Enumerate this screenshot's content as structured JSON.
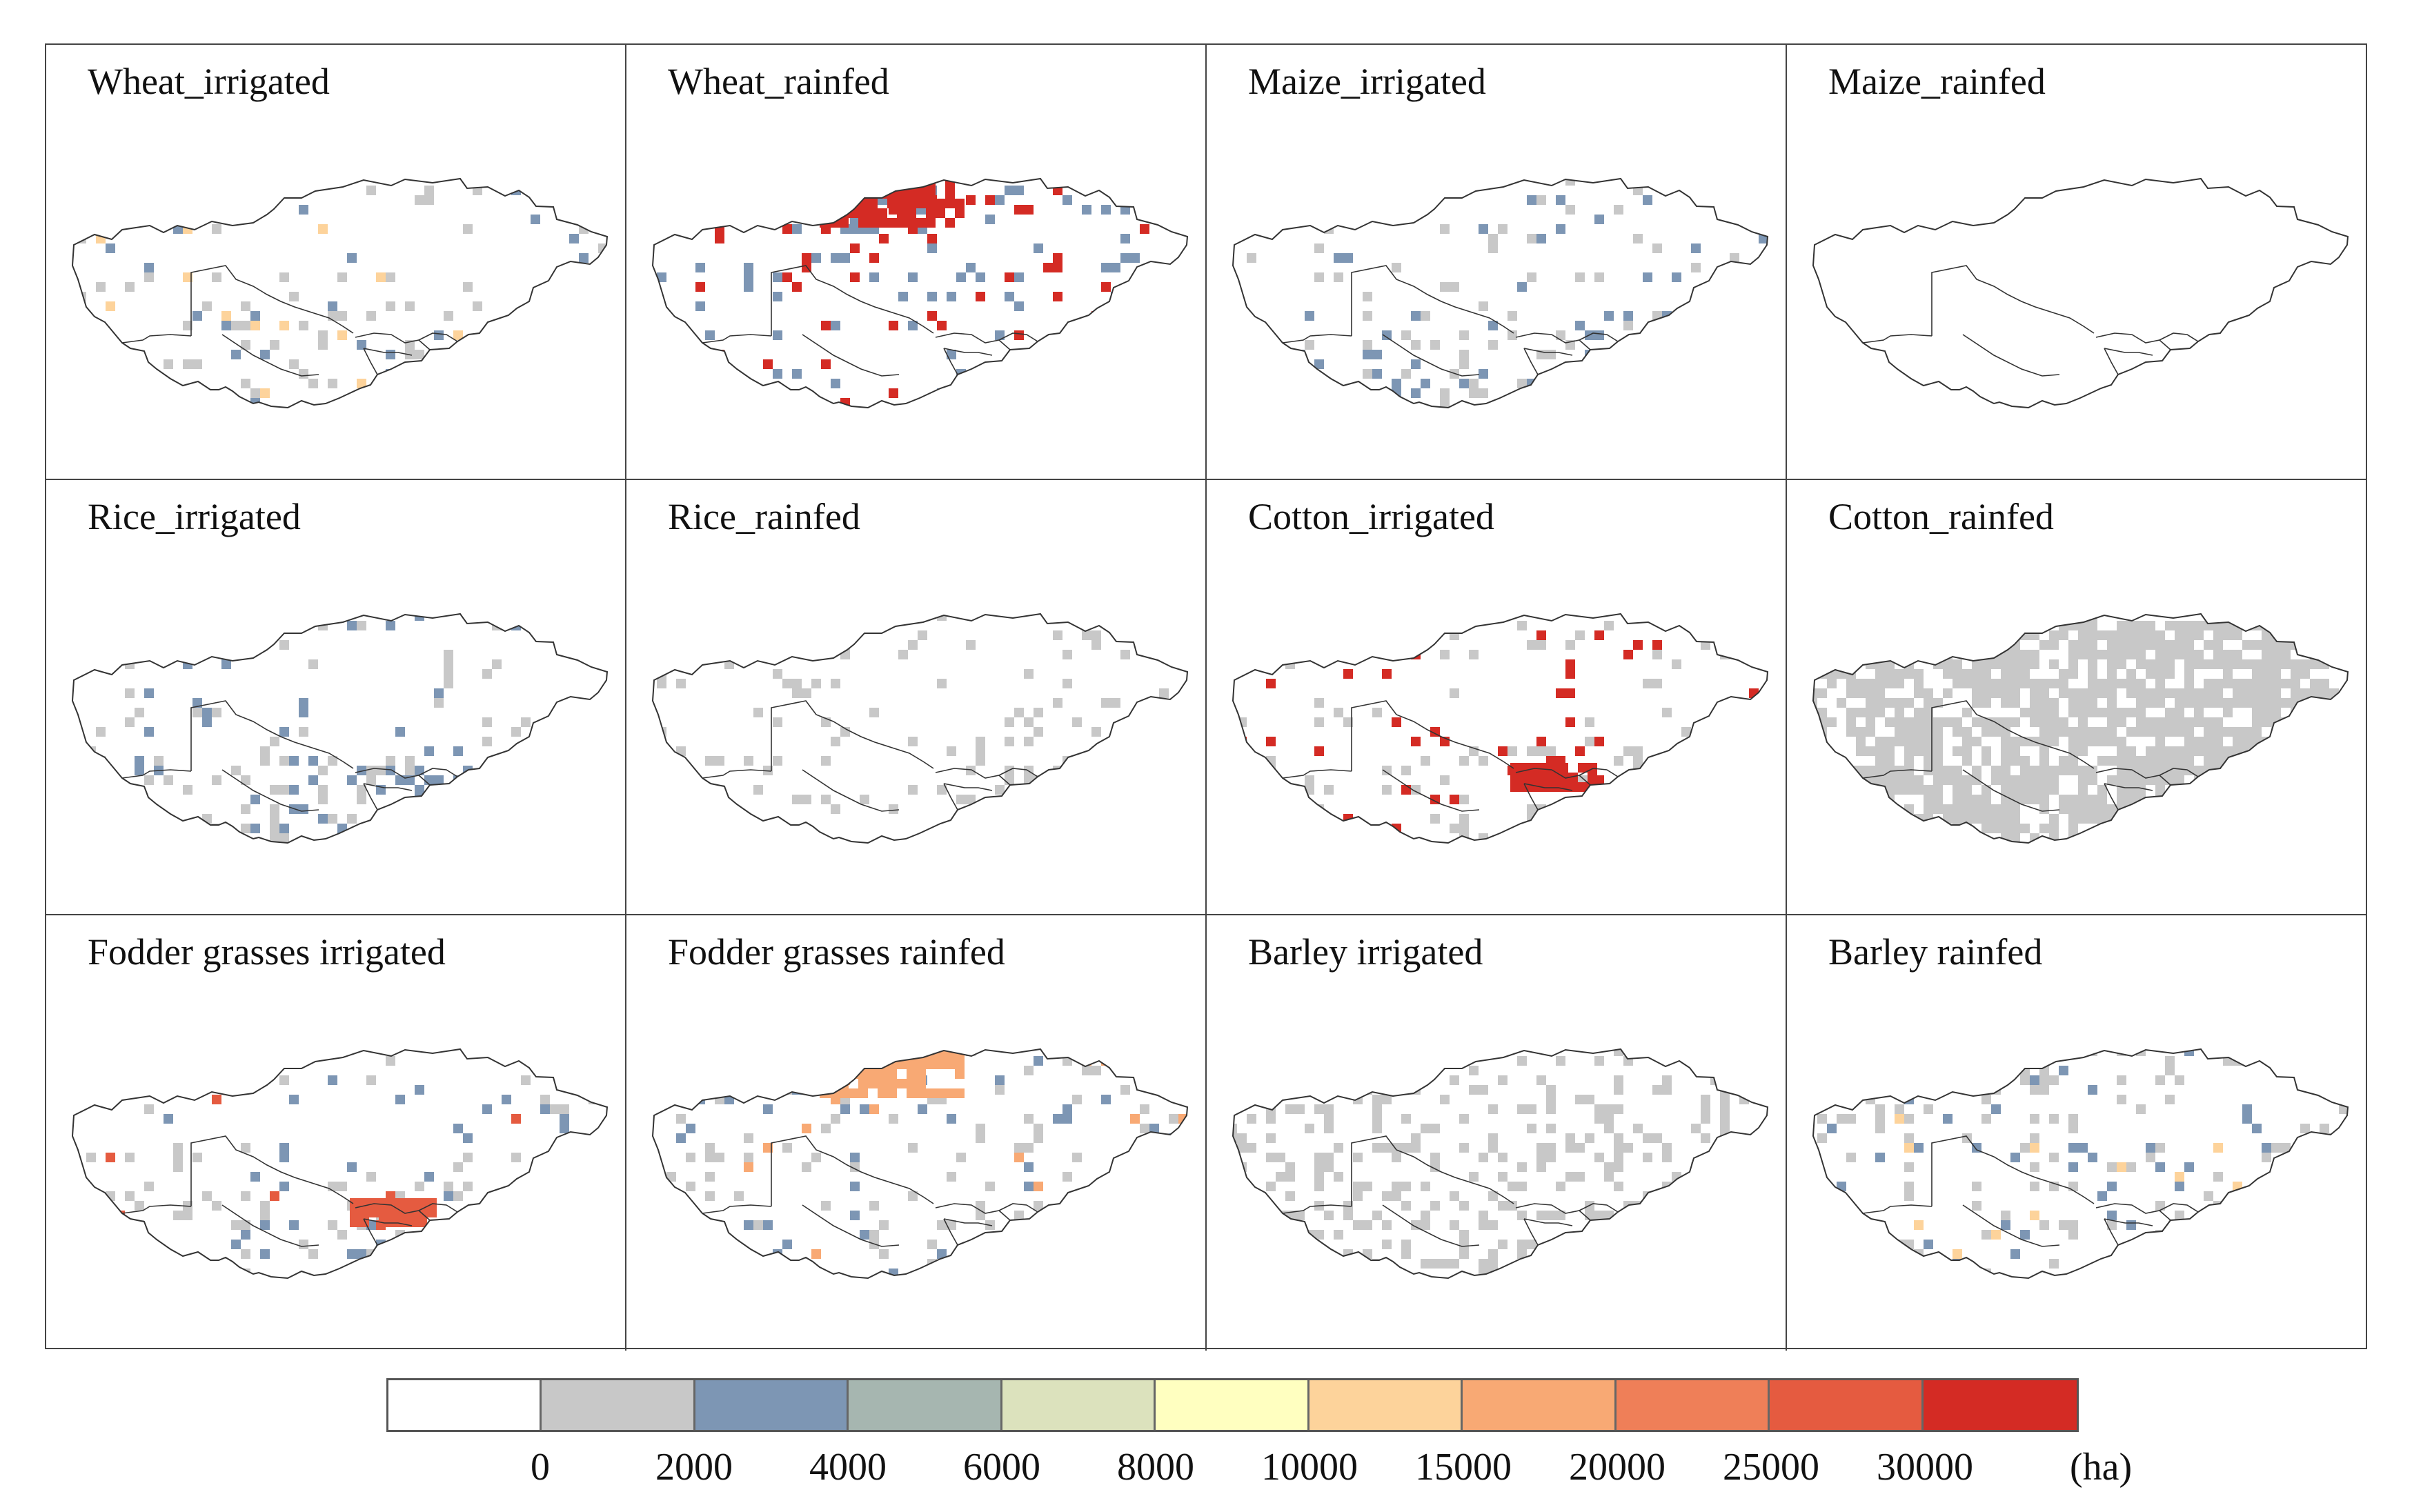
{
  "chart_data": {
    "type": "heatmap",
    "description_kind": "small-multiple choropleth maps of crop harvested area",
    "panels": [
      {
        "title": "Wheat_irrigated",
        "dominant_classes": [
          "0-2000",
          "2000-4000",
          "10000-15000"
        ],
        "hotspot": "south"
      },
      {
        "title": "Wheat_rainfed",
        "dominant_classes": [
          "2000-4000",
          "30000+"
        ],
        "hotspot": "north"
      },
      {
        "title": "Maize_irrigated",
        "dominant_classes": [
          "0-2000",
          "2000-4000"
        ],
        "hotspot": "south"
      },
      {
        "title": "Maize_rainfed",
        "dominant_classes": [],
        "hotspot": "none"
      },
      {
        "title": "Rice_irrigated",
        "dominant_classes": [
          "0-2000",
          "2000-4000"
        ],
        "hotspot": "south"
      },
      {
        "title": "Rice_rainfed",
        "dominant_classes": [
          "0-2000"
        ],
        "hotspot": "southeast"
      },
      {
        "title": "Cotton_irrigated",
        "dominant_classes": [
          "0-2000",
          "30000+"
        ],
        "hotspot": "south"
      },
      {
        "title": "Cotton_rainfed",
        "dominant_classes": [
          "0-2000"
        ],
        "hotspot": "widespread"
      },
      {
        "title": "Fodder grasses  irrigated",
        "dominant_classes": [
          "0-2000",
          "2000-4000",
          "25000-30000"
        ],
        "hotspot": "south"
      },
      {
        "title": "Fodder grasses  rainfed",
        "dominant_classes": [
          "0-2000",
          "2000-4000",
          "15000-20000"
        ],
        "hotspot": "north"
      },
      {
        "title": "Barley  irrigated",
        "dominant_classes": [
          "0-2000"
        ],
        "hotspot": "scattered"
      },
      {
        "title": "Barley  rainfed",
        "dominant_classes": [
          "0-2000",
          "2000-4000",
          "10000-15000"
        ],
        "hotspot": "north"
      }
    ],
    "legend": {
      "colors": [
        "#ffffff",
        "#c8c8c8",
        "#7d96b4",
        "#a6b6b0",
        "#dce2bd",
        "#ffffc0",
        "#fdd39b",
        "#f8a974",
        "#ef7f58",
        "#e55b40",
        "#d42b24"
      ],
      "ticks": [
        "0",
        "2000",
        "4000",
        "6000",
        "8000",
        "10000",
        "15000",
        "20000",
        "25000",
        "30000"
      ],
      "unit": "(ha)"
    }
  }
}
